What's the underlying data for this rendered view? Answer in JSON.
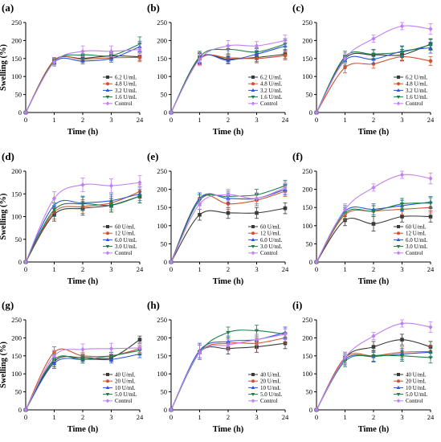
{
  "figure": {
    "colors": {
      "black": "#3a3a3a",
      "red": "#d2532f",
      "blue": "#2b57d8",
      "green": "#1e7f4a",
      "purple": "#c080f0"
    },
    "marker_shapes": [
      "square",
      "circle",
      "triangle-up",
      "triangle-down",
      "diamond"
    ]
  },
  "chart_data": [
    {
      "panel": "(a)",
      "type": "line",
      "x": [
        "0",
        "1",
        "2",
        "3",
        "24"
      ],
      "xlabel": "Time (h)",
      "ylabel": "Swelling (%)",
      "ylim": [
        0,
        250
      ],
      "yticks": [
        0,
        50,
        100,
        150,
        200,
        250
      ],
      "legend_position": "bottom-right",
      "series": [
        {
          "name": "6.2 U/mL",
          "values": [
            0,
            143,
            150,
            157,
            155
          ],
          "errors": [
            0,
            8,
            8,
            8,
            10
          ]
        },
        {
          "name": "4.8 U/mL",
          "values": [
            0,
            145,
            148,
            152,
            153
          ],
          "errors": [
            0,
            8,
            8,
            8,
            12
          ]
        },
        {
          "name": "3.2 U/mL",
          "values": [
            0,
            140,
            143,
            150,
            183
          ],
          "errors": [
            0,
            8,
            8,
            10,
            15
          ]
        },
        {
          "name": "1.6 U/mL",
          "values": [
            0,
            142,
            160,
            158,
            190
          ],
          "errors": [
            0,
            10,
            10,
            10,
            20
          ]
        },
        {
          "name": "Control",
          "values": [
            0,
            140,
            170,
            170,
            175
          ],
          "errors": [
            0,
            12,
            15,
            15,
            15
          ]
        }
      ]
    },
    {
      "panel": "(b)",
      "type": "line",
      "x": [
        "0",
        "1",
        "2",
        "3",
        "24"
      ],
      "xlabel": "Time (h)",
      "ylabel": "",
      "ylim": [
        0,
        250
      ],
      "yticks": [
        0,
        50,
        100,
        150,
        200,
        250
      ],
      "legend_position": "bottom-right",
      "series": [
        {
          "name": "6.2 U/mL",
          "values": [
            0,
            150,
            148,
            153,
            162
          ],
          "errors": [
            0,
            15,
            10,
            12,
            12
          ]
        },
        {
          "name": "4.8 U/mL",
          "values": [
            0,
            148,
            152,
            150,
            158
          ],
          "errors": [
            0,
            15,
            10,
            12,
            12
          ]
        },
        {
          "name": "3.2 U/mL",
          "values": [
            0,
            152,
            145,
            162,
            185
          ],
          "errors": [
            0,
            15,
            10,
            15,
            15
          ]
        },
        {
          "name": "1.6 U/mL",
          "values": [
            0,
            155,
            175,
            168,
            190
          ],
          "errors": [
            0,
            15,
            12,
            12,
            15
          ]
        },
        {
          "name": "Control",
          "values": [
            0,
            148,
            185,
            185,
            200
          ],
          "errors": [
            0,
            18,
            15,
            12,
            15
          ]
        }
      ]
    },
    {
      "panel": "(c)",
      "type": "line",
      "x": [
        "0",
        "1",
        "2",
        "3",
        "24"
      ],
      "xlabel": "Time (h)",
      "ylabel": "",
      "ylim": [
        0,
        250
      ],
      "yticks": [
        0,
        50,
        100,
        150,
        200,
        250
      ],
      "legend_position": "bottom-right",
      "series": [
        {
          "name": "6.2 U/mL",
          "values": [
            0,
            150,
            160,
            160,
            190
          ],
          "errors": [
            0,
            15,
            15,
            15,
            15
          ]
        },
        {
          "name": "4.8 U/mL",
          "values": [
            0,
            125,
            135,
            155,
            143
          ],
          "errors": [
            0,
            15,
            12,
            12,
            12
          ]
        },
        {
          "name": "3.2 U/mL",
          "values": [
            0,
            145,
            148,
            170,
            180
          ],
          "errors": [
            0,
            15,
            12,
            15,
            15
          ]
        },
        {
          "name": "1.6 U/mL",
          "values": [
            0,
            155,
            162,
            168,
            188
          ],
          "errors": [
            0,
            15,
            12,
            15,
            15
          ]
        },
        {
          "name": "Control",
          "values": [
            0,
            150,
            205,
            240,
            232
          ],
          "errors": [
            0,
            15,
            10,
            10,
            15
          ]
        }
      ]
    },
    {
      "panel": "(d)",
      "type": "line",
      "x": [
        "0",
        "1",
        "2",
        "3",
        "24"
      ],
      "xlabel": "Time (h)",
      "ylabel": "Swelling (%)",
      "ylim": [
        0,
        200
      ],
      "yticks": [
        0,
        50,
        100,
        150,
        200
      ],
      "legend_position": "bottom-right",
      "series": [
        {
          "name": "60 U/mL",
          "values": [
            0,
            105,
            118,
            125,
            145
          ],
          "errors": [
            0,
            15,
            15,
            15,
            15
          ]
        },
        {
          "name": "12 U/mL",
          "values": [
            0,
            110,
            122,
            130,
            155
          ],
          "errors": [
            0,
            15,
            15,
            15,
            15
          ]
        },
        {
          "name": "6.0 U/mL",
          "values": [
            0,
            125,
            130,
            135,
            150
          ],
          "errors": [
            0,
            15,
            15,
            15,
            15
          ]
        },
        {
          "name": "3.0 U/mL",
          "values": [
            0,
            115,
            128,
            125,
            145
          ],
          "errors": [
            0,
            15,
            15,
            15,
            15
          ]
        },
        {
          "name": "Control",
          "values": [
            0,
            140,
            170,
            168,
            175
          ],
          "errors": [
            0,
            15,
            15,
            15,
            15
          ]
        }
      ]
    },
    {
      "panel": "(e)",
      "type": "line",
      "x": [
        "0",
        "1",
        "2",
        "3",
        "24"
      ],
      "xlabel": "Time (h)",
      "ylabel": "",
      "ylim": [
        0,
        250
      ],
      "yticks": [
        0,
        50,
        100,
        150,
        200,
        250
      ],
      "legend_position": "bottom-right",
      "series": [
        {
          "name": "60 U/mL",
          "values": [
            0,
            130,
            135,
            135,
            148
          ],
          "errors": [
            0,
            15,
            15,
            15,
            15
          ]
        },
        {
          "name": "12 U/mL",
          "values": [
            0,
            175,
            160,
            170,
            195
          ],
          "errors": [
            0,
            15,
            15,
            15,
            15
          ]
        },
        {
          "name": "6.0 U/mL",
          "values": [
            0,
            175,
            175,
            175,
            200
          ],
          "errors": [
            0,
            15,
            15,
            15,
            15
          ]
        },
        {
          "name": "3.0 U/mL",
          "values": [
            0,
            170,
            180,
            185,
            210
          ],
          "errors": [
            0,
            15,
            15,
            15,
            15
          ]
        },
        {
          "name": "Control",
          "values": [
            0,
            160,
            185,
            175,
            205
          ],
          "errors": [
            0,
            15,
            15,
            15,
            15
          ]
        }
      ]
    },
    {
      "panel": "(f)",
      "type": "line",
      "x": [
        "0",
        "1",
        "2",
        "3",
        "24"
      ],
      "xlabel": "Time (h)",
      "ylabel": "",
      "ylim": [
        0,
        250
      ],
      "yticks": [
        0,
        50,
        100,
        150,
        200,
        250
      ],
      "legend_position": "bottom-right",
      "series": [
        {
          "name": "60 U/mL",
          "values": [
            0,
            115,
            105,
            125,
            125
          ],
          "errors": [
            0,
            15,
            20,
            15,
            15
          ]
        },
        {
          "name": "12 U/mL",
          "values": [
            0,
            130,
            140,
            145,
            150
          ],
          "errors": [
            0,
            15,
            15,
            15,
            15
          ]
        },
        {
          "name": "6.0 U/mL",
          "values": [
            0,
            140,
            145,
            155,
            165
          ],
          "errors": [
            0,
            15,
            15,
            15,
            15
          ]
        },
        {
          "name": "3.0 U/mL",
          "values": [
            0,
            135,
            140,
            160,
            162
          ],
          "errors": [
            0,
            15,
            15,
            15,
            15
          ]
        },
        {
          "name": "Control",
          "values": [
            0,
            145,
            205,
            240,
            230
          ],
          "errors": [
            0,
            15,
            10,
            10,
            15
          ]
        }
      ]
    },
    {
      "panel": "(g)",
      "type": "line",
      "x": [
        "0",
        "1",
        "2",
        "3",
        "24"
      ],
      "xlabel": "Time (h)",
      "ylabel": "Swelling (%)",
      "ylim": [
        0,
        250
      ],
      "yticks": [
        0,
        50,
        100,
        150,
        200,
        250
      ],
      "legend_position": "bottom-right",
      "series": [
        {
          "name": "40 U/mL",
          "values": [
            0,
            135,
            145,
            145,
            195
          ],
          "errors": [
            0,
            15,
            10,
            10,
            10
          ]
        },
        {
          "name": "20 U/mL",
          "values": [
            0,
            160,
            150,
            150,
            170
          ],
          "errors": [
            0,
            15,
            10,
            10,
            10
          ]
        },
        {
          "name": "10 U/mL",
          "values": [
            0,
            130,
            140,
            140,
            155
          ],
          "errors": [
            0,
            15,
            10,
            10,
            10
          ]
        },
        {
          "name": "5.0 U/mL",
          "values": [
            0,
            140,
            140,
            150,
            165
          ],
          "errors": [
            0,
            15,
            10,
            10,
            10
          ]
        },
        {
          "name": "Control",
          "values": [
            0,
            150,
            168,
            170,
            172
          ],
          "errors": [
            0,
            15,
            15,
            15,
            15
          ]
        }
      ]
    },
    {
      "panel": "(h)",
      "type": "line",
      "x": [
        "0",
        "1",
        "2",
        "3",
        "24"
      ],
      "xlabel": "Time (h)",
      "ylabel": "",
      "ylim": [
        0,
        250
      ],
      "yticks": [
        0,
        50,
        100,
        150,
        200,
        250
      ],
      "legend_position": "bottom-right",
      "series": [
        {
          "name": "40 U/mL",
          "values": [
            0,
            160,
            170,
            175,
            185
          ],
          "errors": [
            0,
            20,
            15,
            15,
            15
          ]
        },
        {
          "name": "20 U/mL",
          "values": [
            0,
            160,
            185,
            185,
            200
          ],
          "errors": [
            0,
            20,
            15,
            15,
            15
          ]
        },
        {
          "name": "10 U/mL",
          "values": [
            0,
            165,
            190,
            195,
            215
          ],
          "errors": [
            0,
            20,
            15,
            15,
            15
          ]
        },
        {
          "name": "5.0 U/mL",
          "values": [
            0,
            160,
            215,
            220,
            210
          ],
          "errors": [
            0,
            20,
            15,
            15,
            15
          ]
        },
        {
          "name": "Control",
          "values": [
            0,
            160,
            180,
            195,
            210
          ],
          "errors": [
            0,
            20,
            15,
            15,
            15
          ]
        }
      ]
    },
    {
      "panel": "(i)",
      "type": "line",
      "x": [
        "0",
        "1",
        "2",
        "3",
        "24"
      ],
      "xlabel": "Time (h)",
      "ylabel": "",
      "ylim": [
        0,
        250
      ],
      "yticks": [
        0,
        50,
        100,
        150,
        200,
        250
      ],
      "legend_position": "bottom-right",
      "series": [
        {
          "name": "40 U/mL",
          "values": [
            0,
            145,
            175,
            195,
            175
          ],
          "errors": [
            0,
            15,
            15,
            15,
            15
          ]
        },
        {
          "name": "20 U/mL",
          "values": [
            0,
            145,
            150,
            160,
            162
          ],
          "errors": [
            0,
            15,
            15,
            15,
            15
          ]
        },
        {
          "name": "10 U/mL",
          "values": [
            0,
            140,
            148,
            155,
            160
          ],
          "errors": [
            0,
            15,
            15,
            15,
            15
          ]
        },
        {
          "name": "5.0 U/mL",
          "values": [
            0,
            135,
            150,
            150,
            145
          ],
          "errors": [
            0,
            15,
            15,
            15,
            15
          ]
        },
        {
          "name": "Control",
          "values": [
            0,
            145,
            205,
            240,
            230
          ],
          "errors": [
            0,
            15,
            10,
            10,
            15
          ]
        }
      ]
    }
  ]
}
